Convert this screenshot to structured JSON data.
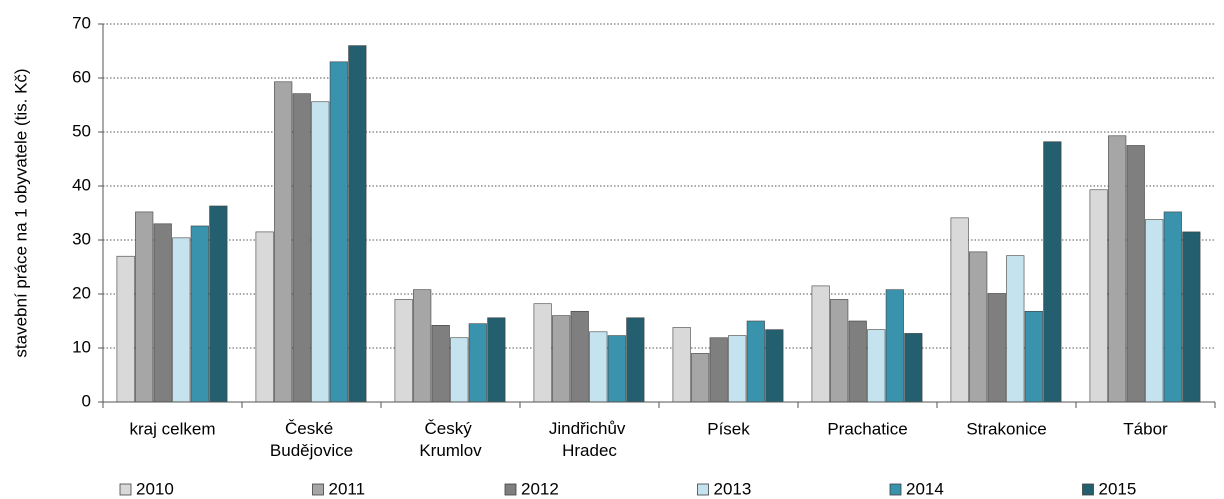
{
  "chart_data": {
    "type": "bar",
    "ylabel": "stavební práce na 1 obyvatele (tis. Kč)",
    "categories": [
      "kraj celkem",
      "České Budějovice",
      "Český Krumlov",
      "Jindřichův Hradec",
      "Písek",
      "Prachatice",
      "Strakonice",
      "Tábor"
    ],
    "series": [
      {
        "name": "2010",
        "color": "#d9d9d9",
        "values": [
          27,
          31.5,
          19,
          18.2,
          13.8,
          21.5,
          34.1,
          39.3
        ]
      },
      {
        "name": "2011",
        "color": "#a6a6a6",
        "values": [
          35.2,
          59.3,
          20.8,
          16,
          9,
          19,
          27.8,
          49.3
        ]
      },
      {
        "name": "2012",
        "color": "#7f7f7f",
        "values": [
          33,
          57.1,
          14.2,
          16.8,
          11.9,
          15,
          20.1,
          47.5
        ]
      },
      {
        "name": "2013",
        "color": "#c5e3ef",
        "values": [
          30.4,
          55.6,
          11.9,
          13,
          12.3,
          13.4,
          27.1,
          33.8
        ]
      },
      {
        "name": "2014",
        "color": "#3a93ac",
        "values": [
          32.6,
          63,
          14.5,
          12.3,
          15,
          20.8,
          16.8,
          35.2
        ]
      },
      {
        "name": "2015",
        "color": "#245f6f",
        "values": [
          36.3,
          66,
          15.6,
          15.6,
          13.4,
          12.7,
          48.2,
          31.5
        ]
      }
    ],
    "ylim": [
      0,
      70
    ],
    "yticks": [
      0,
      10,
      20,
      30,
      40,
      50,
      60,
      70
    ],
    "grid": true,
    "legend": "bottom"
  }
}
